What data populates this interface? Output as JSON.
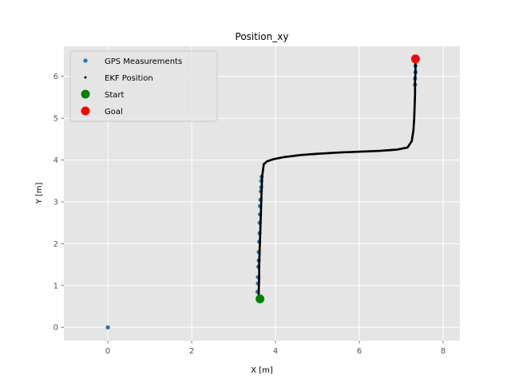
{
  "chart_data": {
    "type": "scatter",
    "title": "Position_xy",
    "xlabel": "X [m]",
    "ylabel": "Y [m]",
    "xlim": [
      -1.05,
      8.4
    ],
    "ylim": [
      -0.32,
      6.72
    ],
    "xticks": [
      0,
      2,
      4,
      6,
      8
    ],
    "yticks": [
      0,
      1,
      2,
      3,
      4,
      5,
      6
    ],
    "grid": true,
    "legend_position": "top-left",
    "legend": [
      {
        "label": "GPS Measurements",
        "color": "#1f77b4",
        "marker": "dot"
      },
      {
        "label": "EKF Position",
        "color": "#000000",
        "marker": "dot-small"
      },
      {
        "label": "Start",
        "color": "#008000",
        "marker": "circle-large"
      },
      {
        "label": "Goal",
        "color": "#ff0000",
        "marker": "circle-large"
      }
    ],
    "series": [
      {
        "name": "GPS Measurements",
        "color": "#1f77b4",
        "x": [
          0.0,
          3.57,
          3.58,
          3.58,
          3.59,
          3.6,
          3.6,
          3.61,
          3.62,
          3.62,
          3.63,
          3.63,
          3.64,
          3.65,
          3.66,
          3.66,
          3.67,
          7.33,
          7.33,
          7.34,
          7.34
        ],
        "y": [
          0.0,
          0.85,
          1.05,
          1.2,
          1.45,
          1.6,
          1.8,
          2.05,
          2.25,
          2.5,
          2.7,
          2.9,
          3.05,
          3.25,
          3.35,
          3.5,
          3.6,
          5.8,
          5.95,
          6.1,
          6.25
        ]
      },
      {
        "name": "EKF Position",
        "color": "#000000",
        "x": [
          3.6,
          3.6,
          3.61,
          3.61,
          3.62,
          3.63,
          3.64,
          3.65,
          3.66,
          3.67,
          3.68,
          3.72,
          3.8,
          3.95,
          4.2,
          4.6,
          5.0,
          5.5,
          6.0,
          6.5,
          6.9,
          7.15,
          7.25,
          7.29,
          7.31,
          7.32,
          7.33,
          7.33,
          7.34,
          7.34
        ],
        "y": [
          0.7,
          0.9,
          1.2,
          1.5,
          1.8,
          2.1,
          2.4,
          2.7,
          3.0,
          3.3,
          3.6,
          3.9,
          3.97,
          4.02,
          4.07,
          4.12,
          4.15,
          4.18,
          4.2,
          4.22,
          4.25,
          4.3,
          4.45,
          4.7,
          5.0,
          5.3,
          5.6,
          5.9,
          6.1,
          6.3
        ]
      },
      {
        "name": "Start",
        "color": "#008000",
        "x": [
          3.63
        ],
        "y": [
          0.68
        ]
      },
      {
        "name": "Goal",
        "color": "#ff0000",
        "x": [
          7.34
        ],
        "y": [
          6.42
        ]
      }
    ]
  }
}
